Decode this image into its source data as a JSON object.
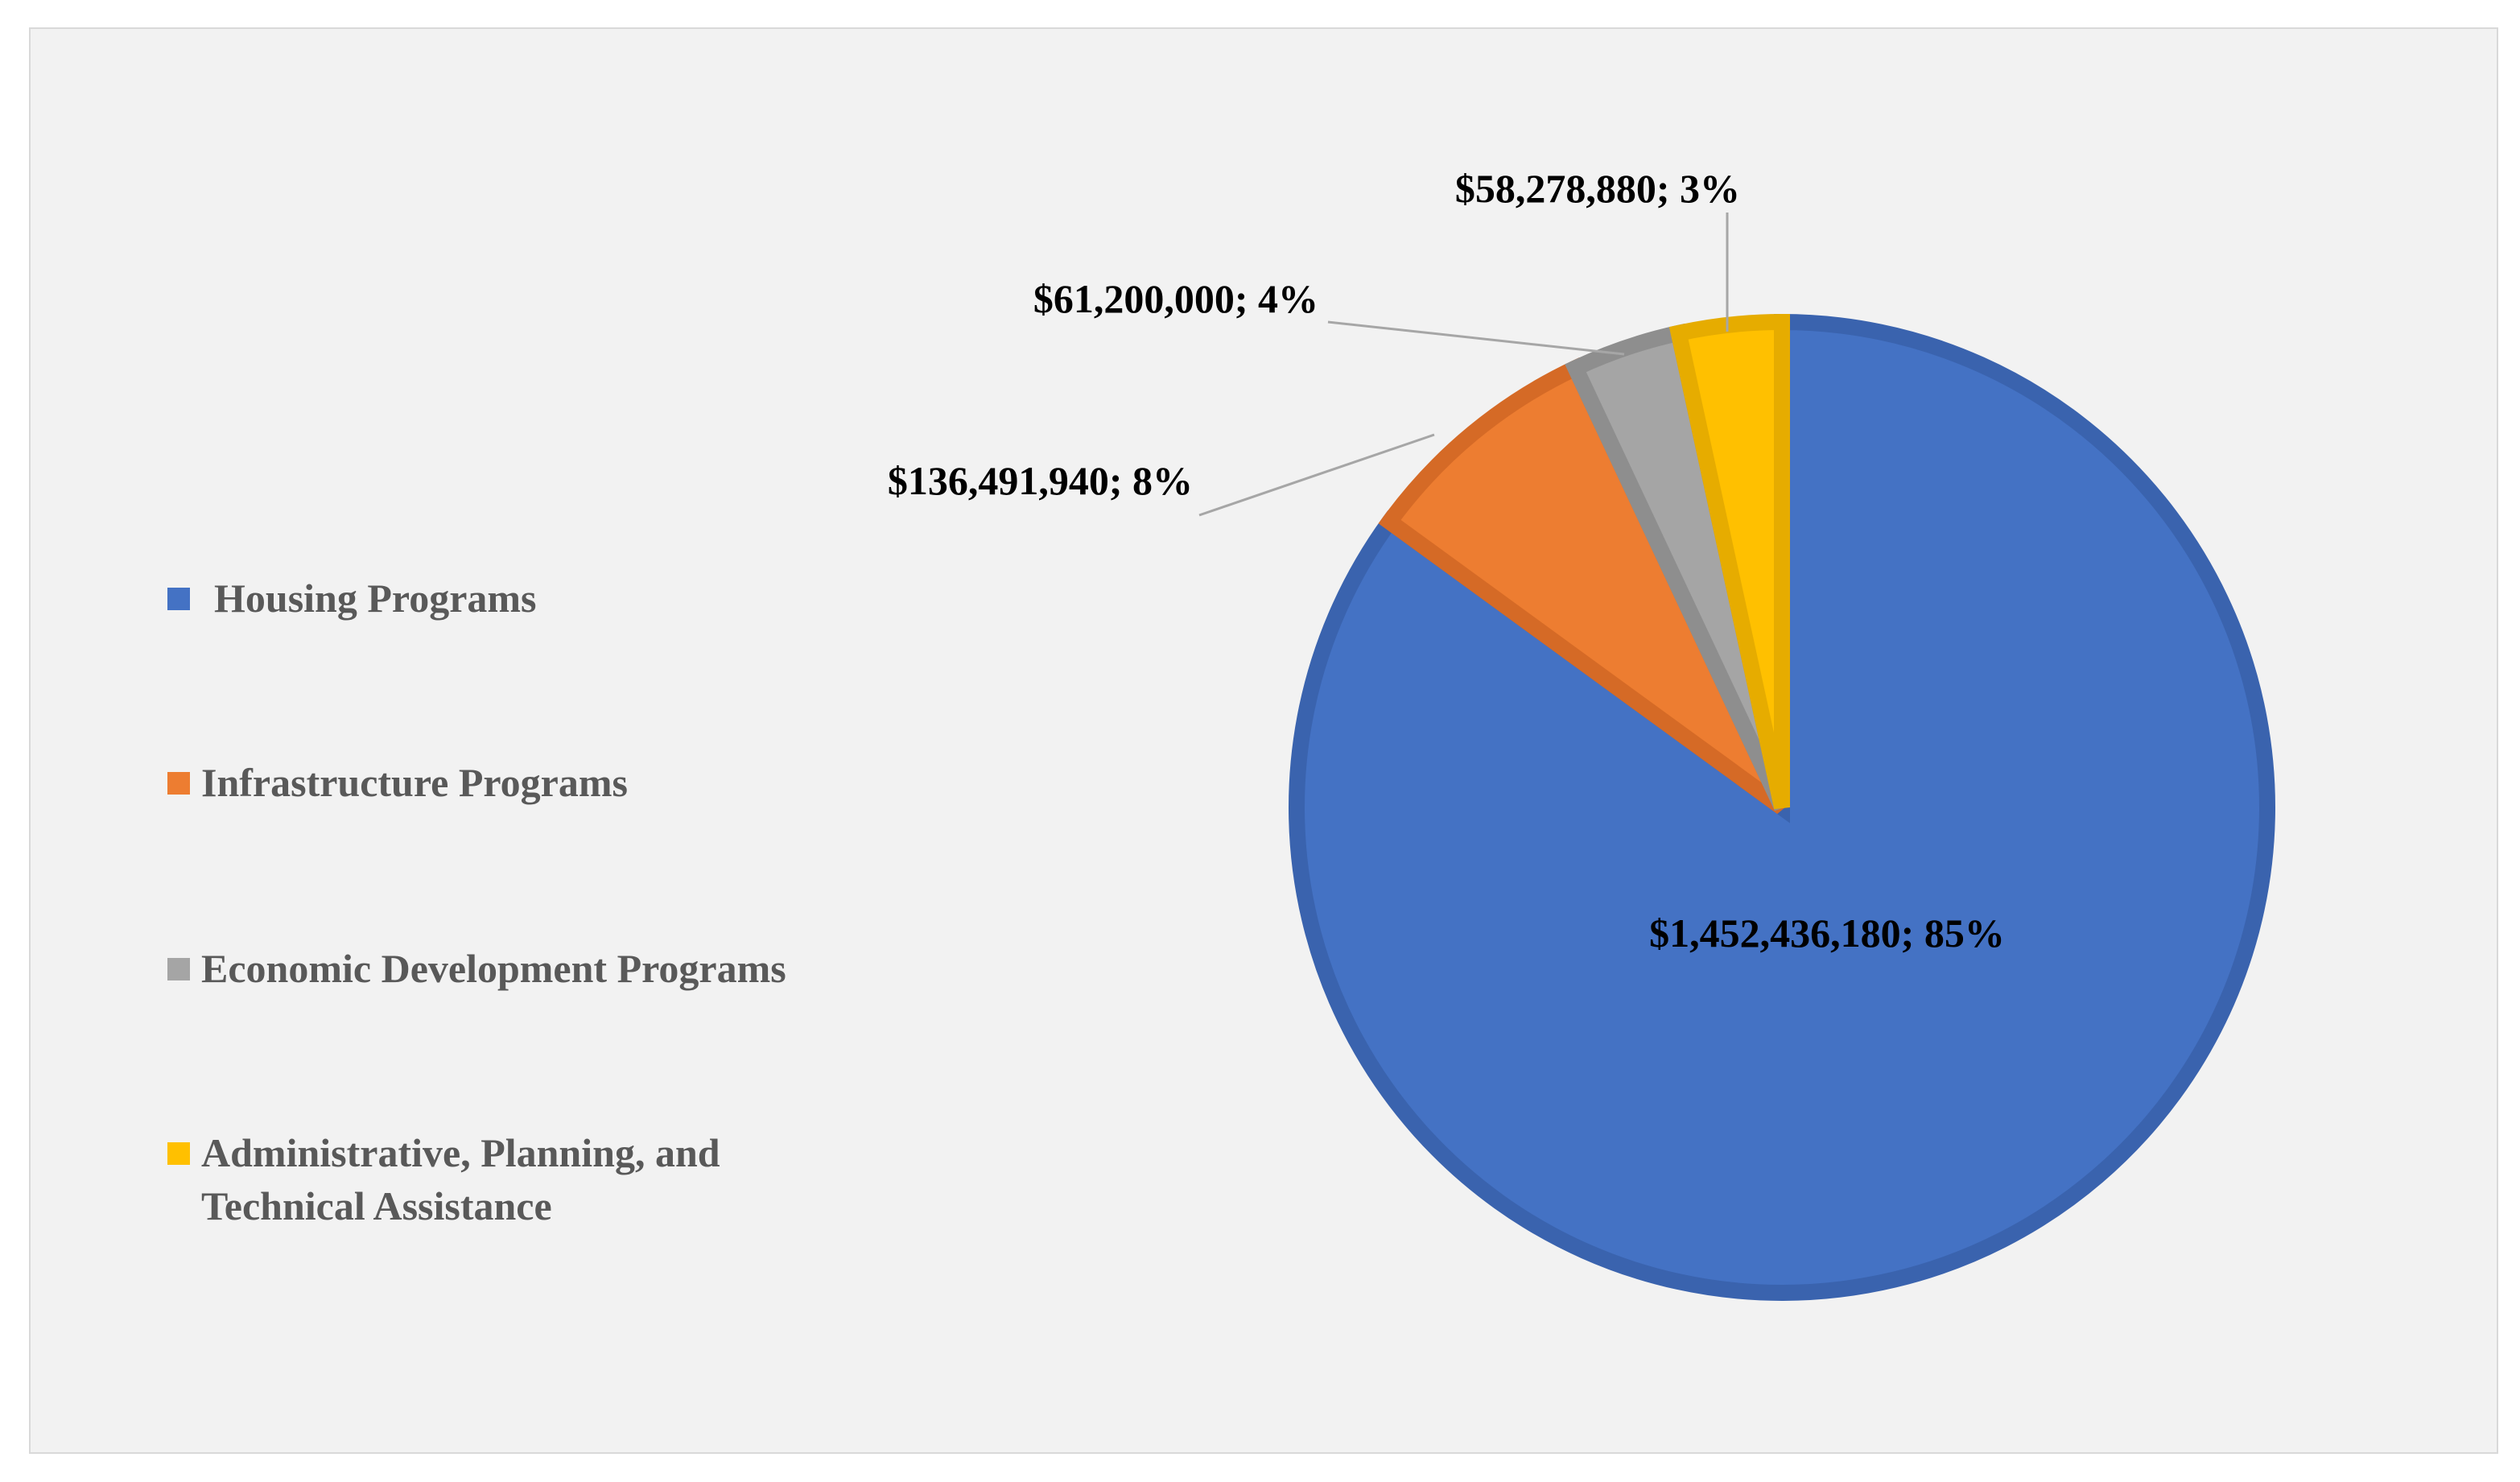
{
  "chart_data": {
    "type": "pie",
    "title": "",
    "legend_position": "left",
    "categories": [
      "Housing Programs",
      "Infrastructure Programs",
      "Economic Development Programs",
      "Administrative, Planning, and Technical Assistance"
    ],
    "values": [
      1452436180,
      136491940,
      61200000,
      58278880
    ],
    "data_labels": [
      "$1,452,436,180;  85%",
      "$136,491,940;  8%",
      "$61,200,000;  4%",
      "$58,278,880;  3%"
    ],
    "percentages": [
      85,
      8,
      4,
      3
    ],
    "legend_lines": [
      [
        "Housing Programs"
      ],
      [
        "Infrastructure Programs"
      ],
      [
        "Economic Development Programs"
      ],
      [
        "Administrative, Planning, and",
        "Technical Assistance"
      ]
    ],
    "colors": [
      "#4472c4",
      "#ed7d31",
      "#a5a5a5",
      "#ffc000"
    ],
    "border_colors": [
      "#3a63ae",
      "#d56a26",
      "#8e8e8e",
      "#e6ac00"
    ],
    "start_angle_deg": 0,
    "direction": "clockwise"
  }
}
